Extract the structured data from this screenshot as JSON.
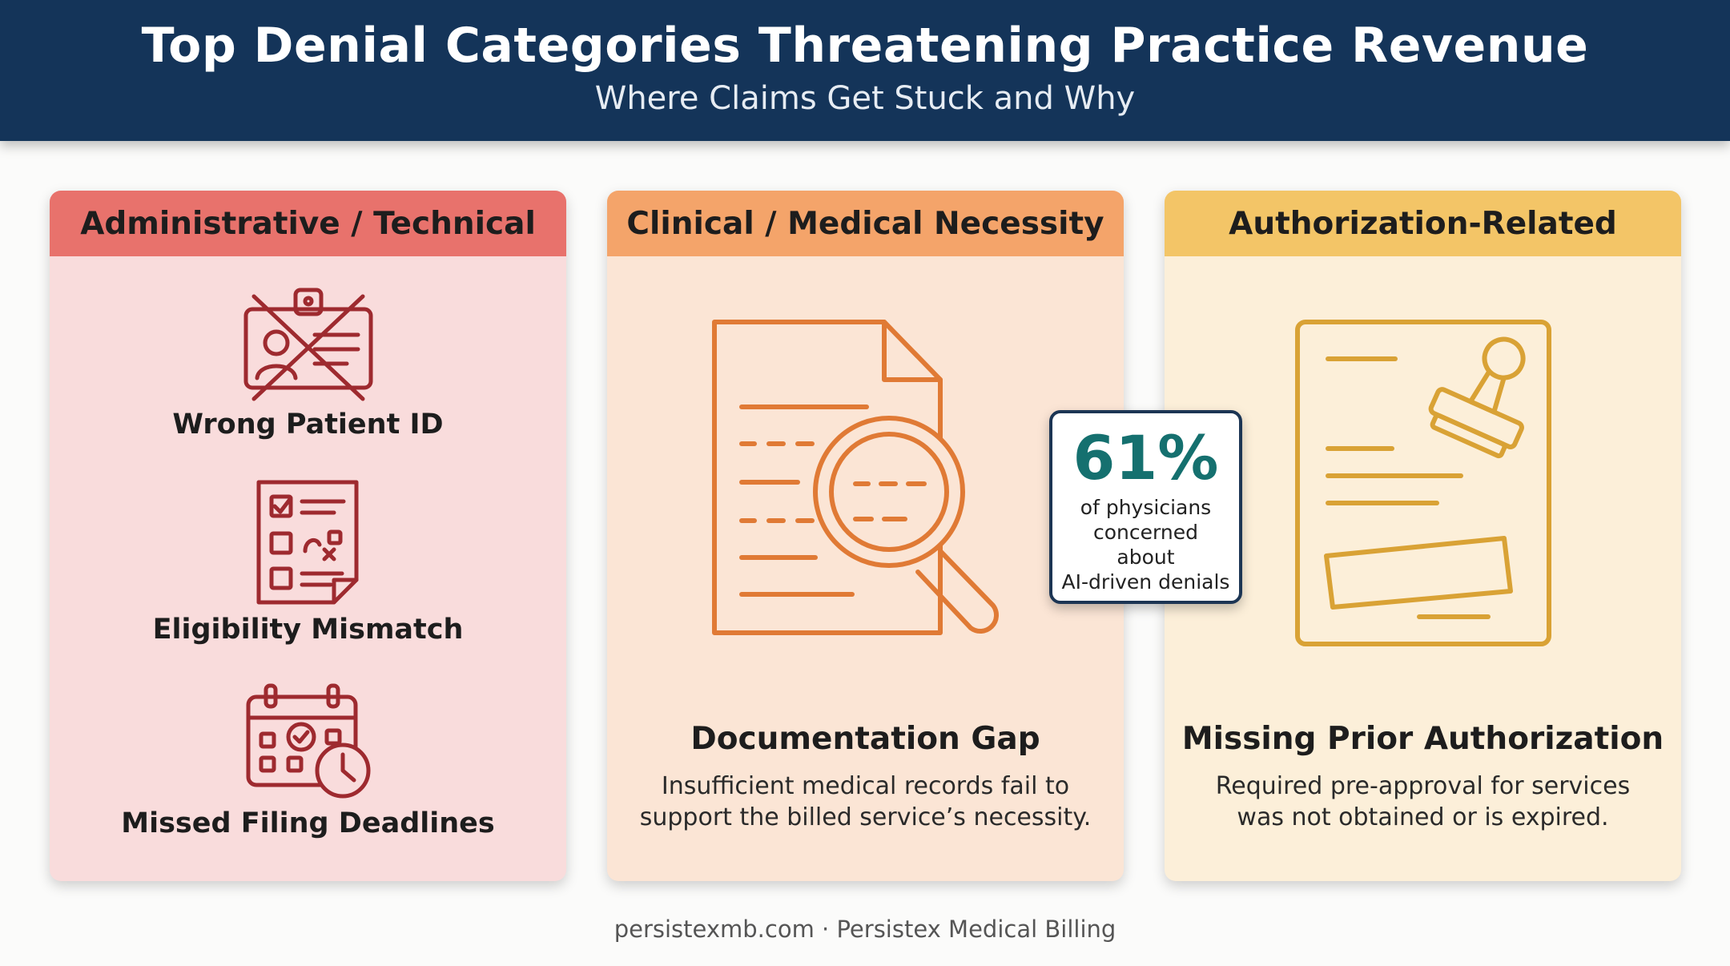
{
  "header": {
    "title": "Top Denial Categories Threatening Practice Revenue",
    "subtitle": "Where Claims Get Stuck and Why"
  },
  "categories": {
    "administrative": {
      "title": "Administrative / Technical",
      "items": [
        {
          "label": "Wrong Patient ID",
          "icon": "crossed-id-card-icon"
        },
        {
          "label": "Eligibility Mismatch",
          "icon": "checklist-icon"
        },
        {
          "label": "Missed Filing Deadlines",
          "icon": "calendar-clock-icon"
        }
      ]
    },
    "clinical": {
      "title": "Clinical / Medical Necessity",
      "item_title": "Documentation Gap",
      "description": "Insufficient medical records fail to support the billed service’s necessity.",
      "icon": "document-magnifier-icon"
    },
    "authorization": {
      "title": "Authorization-Related",
      "item_title": "Missing Prior Authorization",
      "description": "Required pre-approval for services was not obtained or is expired.",
      "icon": "document-stamp-icon"
    }
  },
  "stat": {
    "value": "61%",
    "line1": "of physicians",
    "line2": "concerned",
    "line3": "about",
    "line4": "AI-driven denials"
  },
  "footer": "persistexmb.com · Persistex Medical Billing",
  "colors": {
    "header_bg": "#143459",
    "admin_accent": "#e8726c",
    "clinical_accent": "#f4a46a",
    "auth_accent": "#f3c567",
    "admin_icon": "#9e2a2f",
    "clinical_icon": "#e07a35",
    "auth_icon": "#d9a235",
    "stat_value": "#15706f"
  }
}
